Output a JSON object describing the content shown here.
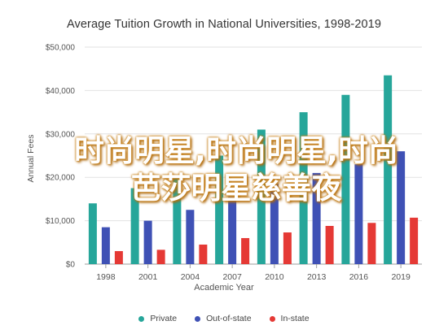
{
  "chart_data": {
    "type": "bar",
    "title": "Average Tuition Growth in National Universities, 1998-2019",
    "xlabel": "Academic Year",
    "ylabel": "Annual Fees",
    "categories": [
      "1998",
      "2001",
      "2004",
      "2007",
      "2010",
      "2013",
      "2016",
      "2019"
    ],
    "series": [
      {
        "name": "Private",
        "color": "#26a69a",
        "values": [
          14000,
          17500,
          20000,
          25000,
          31000,
          35000,
          39000,
          43500
        ]
      },
      {
        "name": "Out-of-state",
        "color": "#3f51b5",
        "values": [
          8500,
          10000,
          12500,
          15500,
          18500,
          21000,
          23000,
          26000
        ]
      },
      {
        "name": "In-state",
        "color": "#e53935",
        "values": [
          3000,
          3300,
          4500,
          6000,
          7300,
          8800,
          9500,
          10700
        ]
      }
    ],
    "yticks": [
      "$0",
      "$10,000",
      "$20,000",
      "$30,000",
      "$40,000",
      "$50,000"
    ],
    "ylim": [
      0,
      50000
    ],
    "grid": true,
    "legend_position": "bottom"
  },
  "overlay": {
    "text": "时尚明星,时尚明星,时尚芭莎明星慈善夜",
    "color": "#ffffff",
    "outline_color": "#c77e12"
  }
}
